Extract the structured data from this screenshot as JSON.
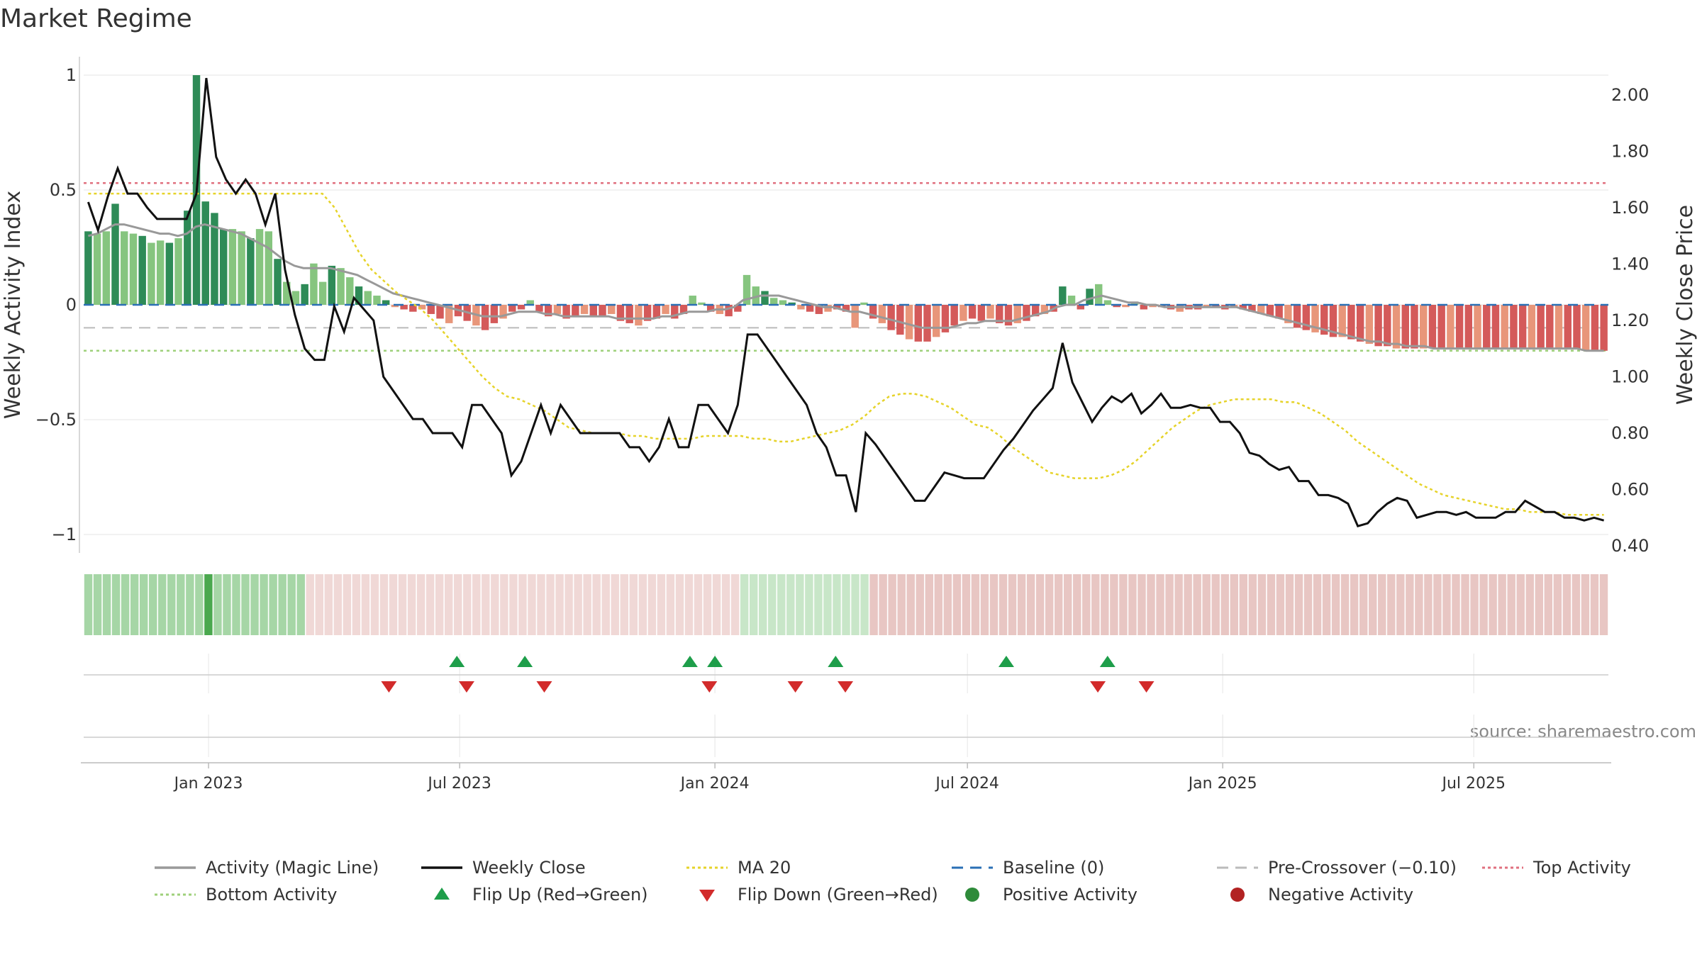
{
  "title": "Market Regime",
  "source": "source: sharemaestro.com",
  "colors": {
    "green_dark": "#2e8b57",
    "green_light": "#86c57f",
    "red_dark": "#d45a5a",
    "red_light": "#e8967a",
    "magic": "#999999",
    "close": "#111111",
    "ma": "#e6d32a",
    "baseline": "#2a6fb5",
    "precross": "#bbbbbb",
    "top": "#e0707f",
    "bottom": "#9ed07a",
    "flip_up": "#1e9e4a",
    "flip_down": "#d22b2b",
    "strip_green": "#a6d6a6",
    "strip_green_mid": "#c8e6c8",
    "strip_green_strong": "#4aa84e",
    "strip_red": "#e8c6c3",
    "strip_red_soft": "#f0d8d6"
  },
  "chart_data": {
    "type": "bar",
    "title": "Market Regime",
    "ylabel_left": "Weekly Activity Index",
    "ylabel_right": "Weekly Close Price",
    "ylim_left": [
      -1.05,
      1.08
    ],
    "ylim_right": [
      0.4,
      2.1
    ],
    "yticks_left": [
      1,
      0.5,
      0,
      -0.5,
      -1
    ],
    "yticks_left_labels": [
      "1",
      "0.5",
      "0",
      "−0.5",
      "−1"
    ],
    "yticks_right": [
      2.0,
      1.8,
      1.6,
      1.4,
      1.2,
      1.0,
      0.8,
      0.6,
      0.4
    ],
    "yticks_right_labels": [
      "2.00",
      "1.80",
      "1.60",
      "1.40",
      "1.20",
      "1.00",
      "0.80",
      "0.60",
      "0.40"
    ],
    "x_start": "2022-10-03",
    "x_end": "2025-10-06",
    "x_ticks": [
      {
        "date": "2023-01-01",
        "label": "Jan 2023"
      },
      {
        "date": "2023-07-01",
        "label": "Jul 2023"
      },
      {
        "date": "2024-01-01",
        "label": "Jan 2024"
      },
      {
        "date": "2024-07-01",
        "label": "Jul 2024"
      },
      {
        "date": "2025-01-01",
        "label": "Jan 2025"
      },
      {
        "date": "2025-07-01",
        "label": "Jul 2025"
      }
    ],
    "top_activity": 0.53,
    "bottom_activity": -0.2,
    "baseline": 0,
    "pre_crossover": -0.1,
    "activity": [
      0.32,
      0.31,
      0.32,
      0.44,
      0.32,
      0.31,
      0.3,
      0.27,
      0.28,
      0.27,
      0.29,
      0.41,
      1.0,
      0.45,
      0.4,
      0.33,
      0.33,
      0.32,
      0.29,
      0.33,
      0.32,
      0.2,
      0.1,
      0.06,
      0.09,
      0.18,
      0.1,
      0.17,
      0.16,
      0.12,
      0.08,
      0.06,
      0.04,
      0.02,
      -0.01,
      -0.02,
      -0.03,
      -0.02,
      -0.04,
      -0.06,
      -0.08,
      -0.05,
      -0.07,
      -0.09,
      -0.11,
      -0.08,
      -0.06,
      -0.03,
      -0.02,
      0.02,
      -0.03,
      -0.05,
      -0.04,
      -0.06,
      -0.05,
      -0.04,
      -0.05,
      -0.05,
      -0.04,
      -0.07,
      -0.08,
      -0.09,
      -0.07,
      -0.06,
      -0.04,
      -0.06,
      -0.04,
      0.04,
      0.01,
      -0.03,
      -0.04,
      -0.05,
      -0.03,
      0.13,
      0.08,
      0.06,
      0.03,
      0.02,
      0.01,
      -0.02,
      -0.03,
      -0.04,
      -0.03,
      -0.02,
      -0.03,
      -0.1,
      0.01,
      -0.06,
      -0.08,
      -0.11,
      -0.13,
      -0.15,
      -0.16,
      -0.16,
      -0.14,
      -0.12,
      -0.09,
      -0.07,
      -0.06,
      -0.07,
      -0.06,
      -0.08,
      -0.09,
      -0.08,
      -0.07,
      -0.05,
      -0.04,
      -0.03,
      0.08,
      0.04,
      -0.02,
      0.07,
      0.09,
      0.02,
      -0.01,
      -0.01,
      0.01,
      -0.02,
      -0.01,
      -0.01,
      -0.02,
      -0.03,
      -0.02,
      -0.02,
      -0.01,
      -0.01,
      -0.02,
      -0.01,
      -0.02,
      -0.03,
      -0.04,
      -0.05,
      -0.06,
      -0.08,
      -0.1,
      -0.11,
      -0.12,
      -0.13,
      -0.14,
      -0.14,
      -0.15,
      -0.16,
      -0.17,
      -0.18,
      -0.18,
      -0.19,
      -0.19,
      -0.19,
      -0.19,
      -0.19,
      -0.19,
      -0.19,
      -0.19,
      -0.19,
      -0.19,
      -0.19,
      -0.19,
      -0.19,
      -0.19,
      -0.19,
      -0.19,
      -0.19,
      -0.19,
      -0.19,
      -0.19,
      -0.19,
      -0.2,
      -0.2,
      -0.2
    ],
    "magic_line": [
      0.3,
      0.31,
      0.33,
      0.35,
      0.35,
      0.34,
      0.33,
      0.32,
      0.31,
      0.31,
      0.3,
      0.31,
      0.34,
      0.35,
      0.34,
      0.33,
      0.32,
      0.31,
      0.29,
      0.27,
      0.25,
      0.22,
      0.19,
      0.17,
      0.16,
      0.16,
      0.16,
      0.16,
      0.15,
      0.14,
      0.13,
      0.11,
      0.09,
      0.07,
      0.05,
      0.04,
      0.03,
      0.02,
      0.01,
      0,
      -0.01,
      -0.02,
      -0.03,
      -0.04,
      -0.05,
      -0.05,
      -0.05,
      -0.04,
      -0.03,
      -0.03,
      -0.03,
      -0.04,
      -0.04,
      -0.05,
      -0.05,
      -0.05,
      -0.05,
      -0.05,
      -0.05,
      -0.06,
      -0.06,
      -0.06,
      -0.06,
      -0.06,
      -0.05,
      -0.05,
      -0.04,
      -0.03,
      -0.03,
      -0.03,
      -0.02,
      -0.02,
      -0.01,
      0.02,
      0.03,
      0.04,
      0.04,
      0.04,
      0.03,
      0.02,
      0.01,
      0,
      -0.01,
      -0.01,
      -0.02,
      -0.03,
      -0.03,
      -0.04,
      -0.05,
      -0.06,
      -0.07,
      -0.08,
      -0.09,
      -0.1,
      -0.1,
      -0.1,
      -0.1,
      -0.09,
      -0.08,
      -0.08,
      -0.07,
      -0.07,
      -0.07,
      -0.07,
      -0.06,
      -0.05,
      -0.04,
      -0.03,
      -0.01,
      0,
      0,
      0.02,
      0.03,
      0.04,
      0.03,
      0.02,
      0.01,
      0.01,
      0,
      0,
      -0.01,
      -0.01,
      -0.01,
      -0.01,
      -0.01,
      -0.01,
      -0.01,
      -0.01,
      -0.01,
      -0.02,
      -0.03,
      -0.04,
      -0.05,
      -0.06,
      -0.07,
      -0.08,
      -0.09,
      -0.1,
      -0.11,
      -0.12,
      -0.13,
      -0.14,
      -0.15,
      -0.16,
      -0.16,
      -0.17,
      -0.17,
      -0.18,
      -0.18,
      -0.18,
      -0.19,
      -0.19,
      -0.19,
      -0.19,
      -0.19,
      -0.19,
      -0.19,
      -0.19,
      -0.19,
      -0.19,
      -0.19,
      -0.19,
      -0.19,
      -0.19,
      -0.19,
      -0.19,
      -0.19,
      -0.2,
      -0.2,
      -0.2
    ],
    "weekly_close": [
      1.62,
      1.52,
      1.64,
      1.74,
      1.65,
      1.65,
      1.6,
      1.56,
      1.56,
      1.56,
      1.56,
      1.65,
      2.06,
      1.78,
      1.7,
      1.65,
      1.7,
      1.65,
      1.54,
      1.65,
      1.38,
      1.22,
      1.1,
      1.06,
      1.06,
      1.25,
      1.16,
      1.28,
      1.24,
      1.2,
      1.0,
      0.95,
      0.9,
      0.85,
      0.85,
      0.8,
      0.8,
      0.8,
      0.75,
      0.9,
      0.9,
      0.85,
      0.8,
      0.65,
      0.7,
      0.8,
      0.9,
      0.8,
      0.9,
      0.85,
      0.8,
      0.8,
      0.8,
      0.8,
      0.8,
      0.75,
      0.75,
      0.7,
      0.75,
      0.85,
      0.75,
      0.75,
      0.9,
      0.9,
      0.85,
      0.8,
      0.9,
      1.15,
      1.15,
      1.1,
      1.05,
      1.0,
      0.95,
      0.9,
      0.8,
      0.75,
      0.65,
      0.65,
      0.52,
      0.8,
      0.76,
      0.71,
      0.66,
      0.61,
      0.56,
      0.56,
      0.61,
      0.66,
      0.65,
      0.64,
      0.64,
      0.64,
      0.69,
      0.74,
      0.78,
      0.83,
      0.88,
      0.92,
      0.96,
      1.12,
      0.98,
      0.91,
      0.84,
      0.89,
      0.93,
      0.91,
      0.94,
      0.87,
      0.9,
      0.94,
      0.89,
      0.89,
      0.9,
      0.89,
      0.89,
      0.84,
      0.84,
      0.8,
      0.73,
      0.72,
      0.69,
      0.67,
      0.68,
      0.63,
      0.63,
      0.58,
      0.58,
      0.57,
      0.55,
      0.47,
      0.48,
      0.52,
      0.55,
      0.57,
      0.56,
      0.5,
      0.51,
      0.52,
      0.52,
      0.51,
      0.52,
      0.5,
      0.5,
      0.5,
      0.52,
      0.52,
      0.56,
      0.54,
      0.52,
      0.52,
      0.5,
      0.5,
      0.49,
      0.5,
      0.49
    ],
    "ma20": [
      1.65,
      1.65,
      1.65,
      1.65,
      1.65,
      1.65,
      1.65,
      1.65,
      1.65,
      1.65,
      1.65,
      1.65,
      1.65,
      1.65,
      1.65,
      1.65,
      1.65,
      1.65,
      1.65,
      1.65,
      1.6,
      1.52,
      1.44,
      1.38,
      1.34,
      1.3,
      1.27,
      1.24,
      1.2,
      1.15,
      1.1,
      1.05,
      1.0,
      0.96,
      0.93,
      0.92,
      0.9,
      0.88,
      0.85,
      0.82,
      0.81,
      0.8,
      0.8,
      0.8,
      0.79,
      0.79,
      0.78,
      0.78,
      0.78,
      0.78,
      0.79,
      0.79,
      0.79,
      0.79,
      0.78,
      0.78,
      0.77,
      0.77,
      0.78,
      0.79,
      0.8,
      0.81,
      0.83,
      0.86,
      0.9,
      0.93,
      0.94,
      0.94,
      0.93,
      0.91,
      0.89,
      0.86,
      0.83,
      0.82,
      0.79,
      0.75,
      0.72,
      0.69,
      0.66,
      0.65,
      0.64,
      0.64,
      0.64,
      0.65,
      0.67,
      0.7,
      0.74,
      0.78,
      0.82,
      0.85,
      0.88,
      0.9,
      0.91,
      0.92,
      0.92,
      0.92,
      0.92,
      0.91,
      0.91,
      0.89,
      0.87,
      0.84,
      0.81,
      0.77,
      0.74,
      0.71,
      0.68,
      0.65,
      0.62,
      0.6,
      0.58,
      0.57,
      0.56,
      0.55,
      0.54,
      0.53,
      0.53,
      0.52,
      0.52,
      0.52,
      0.51,
      0.51,
      0.51,
      0.51
    ],
    "flip_up_dates": [
      "2023-06-29",
      "2023-08-17",
      "2023-12-14",
      "2024-01-01",
      "2024-03-28",
      "2024-07-29",
      "2024-10-10"
    ],
    "flip_down_dates": [
      "2023-05-11",
      "2023-07-06",
      "2023-08-31",
      "2023-12-28",
      "2024-02-28",
      "2024-04-04",
      "2024-10-03",
      "2024-11-07"
    ],
    "regime_strip": "gggggggggggggGggggggggggMMMMMMMMMMMMMMMMMMMMMMMMMMMMMMMMMMMMMMMMMMMMMMMmmmmmmmmmmmmmmRRRRRRRRRRRRRRRRRRRRRRRRRRRRRRRRRRRRRRRRRRRRRRRRRRRRRRRRRRRRRRRRRRRRRRRRRRRRRRRR",
    "legend": [
      {
        "key": "magic",
        "label": "Activity (Magic Line)",
        "style": "line"
      },
      {
        "key": "close",
        "label": "Weekly Close",
        "style": "line"
      },
      {
        "key": "ma",
        "label": "MA 20",
        "style": "dotted"
      },
      {
        "key": "baseline",
        "label": "Baseline (0)",
        "style": "dashed"
      },
      {
        "key": "precross",
        "label": "Pre-Crossover (−0.10)",
        "style": "dashed"
      },
      {
        "key": "top",
        "label": "Top Activity",
        "style": "dotted"
      },
      {
        "key": "bottom",
        "label": "Bottom Activity",
        "style": "dotted"
      },
      {
        "key": "flip_up",
        "label": "Flip Up (Red→Green)",
        "style": "tri-up"
      },
      {
        "key": "flip_down",
        "label": "Flip Down (Green→Red)",
        "style": "tri-down"
      },
      {
        "key": "positive",
        "label": "Positive Activity",
        "style": "dot-green"
      },
      {
        "key": "negative",
        "label": "Negative Activity",
        "style": "dot-red"
      }
    ]
  }
}
